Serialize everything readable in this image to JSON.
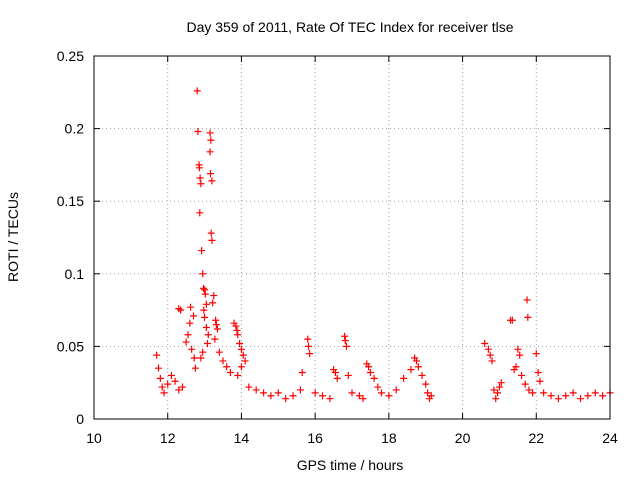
{
  "chart_data": {
    "type": "scatter",
    "title": "Day 359 of 2011, Rate Of TEC Index for receiver tlse",
    "xlabel": "GPS time / hours",
    "ylabel": "ROTI / TECUs",
    "xlim": [
      10,
      24
    ],
    "ylim": [
      0,
      0.25
    ],
    "xticks": [
      "10",
      "12",
      "14",
      "16",
      "18",
      "20",
      "22",
      "24"
    ],
    "yticks": [
      "0",
      "0.05",
      "0.1",
      "0.15",
      "0.2",
      "0.25"
    ],
    "grid": true,
    "marker": "+",
    "series": [
      {
        "name": "ROTI",
        "color": "#ff0000",
        "points": [
          [
            11.7,
            0.044
          ],
          [
            11.75,
            0.035
          ],
          [
            11.8,
            0.028
          ],
          [
            11.85,
            0.022
          ],
          [
            11.9,
            0.018
          ],
          [
            12.0,
            0.024
          ],
          [
            12.1,
            0.03
          ],
          [
            12.2,
            0.026
          ],
          [
            12.3,
            0.02
          ],
          [
            12.4,
            0.022
          ],
          [
            12.3,
            0.076
          ],
          [
            12.35,
            0.075
          ],
          [
            12.5,
            0.053
          ],
          [
            12.55,
            0.058
          ],
          [
            12.6,
            0.066
          ],
          [
            12.62,
            0.077
          ],
          [
            12.65,
            0.048
          ],
          [
            12.7,
            0.071
          ],
          [
            12.72,
            0.042
          ],
          [
            12.75,
            0.035
          ],
          [
            12.8,
            0.226
          ],
          [
            12.82,
            0.198
          ],
          [
            12.85,
            0.175
          ],
          [
            12.86,
            0.173
          ],
          [
            12.88,
            0.166
          ],
          [
            12.9,
            0.162
          ],
          [
            12.87,
            0.142
          ],
          [
            12.92,
            0.116
          ],
          [
            12.95,
            0.1
          ],
          [
            12.97,
            0.09
          ],
          [
            13.0,
            0.089
          ],
          [
            13.02,
            0.086
          ],
          [
            13.05,
            0.079
          ],
          [
            12.98,
            0.075
          ],
          [
            13.0,
            0.07
          ],
          [
            13.05,
            0.063
          ],
          [
            13.1,
            0.058
          ],
          [
            13.08,
            0.052
          ],
          [
            12.95,
            0.046
          ],
          [
            12.9,
            0.042
          ],
          [
            13.15,
            0.197
          ],
          [
            13.17,
            0.192
          ],
          [
            13.15,
            0.184
          ],
          [
            13.16,
            0.169
          ],
          [
            13.2,
            0.164
          ],
          [
            13.18,
            0.128
          ],
          [
            13.2,
            0.123
          ],
          [
            13.25,
            0.085
          ],
          [
            13.22,
            0.08
          ],
          [
            13.3,
            0.068
          ],
          [
            13.32,
            0.065
          ],
          [
            13.35,
            0.062
          ],
          [
            13.28,
            0.055
          ],
          [
            13.4,
            0.046
          ],
          [
            13.5,
            0.04
          ],
          [
            13.6,
            0.036
          ],
          [
            13.7,
            0.032
          ],
          [
            13.8,
            0.066
          ],
          [
            13.85,
            0.064
          ],
          [
            13.88,
            0.061
          ],
          [
            13.9,
            0.058
          ],
          [
            13.95,
            0.052
          ],
          [
            14.0,
            0.048
          ],
          [
            14.05,
            0.044
          ],
          [
            14.1,
            0.04
          ],
          [
            14.0,
            0.036
          ],
          [
            13.9,
            0.03
          ],
          [
            14.2,
            0.022
          ],
          [
            14.4,
            0.02
          ],
          [
            14.6,
            0.018
          ],
          [
            14.8,
            0.016
          ],
          [
            15.0,
            0.018
          ],
          [
            15.2,
            0.014
          ],
          [
            15.4,
            0.016
          ],
          [
            15.6,
            0.02
          ],
          [
            15.65,
            0.032
          ],
          [
            15.8,
            0.055
          ],
          [
            15.82,
            0.05
          ],
          [
            15.85,
            0.045
          ],
          [
            16.0,
            0.018
          ],
          [
            16.2,
            0.016
          ],
          [
            16.4,
            0.014
          ],
          [
            16.5,
            0.034
          ],
          [
            16.55,
            0.032
          ],
          [
            16.6,
            0.028
          ],
          [
            16.8,
            0.057
          ],
          [
            16.82,
            0.054
          ],
          [
            16.85,
            0.05
          ],
          [
            16.9,
            0.03
          ],
          [
            17.0,
            0.018
          ],
          [
            17.2,
            0.016
          ],
          [
            17.3,
            0.014
          ],
          [
            17.4,
            0.038
          ],
          [
            17.45,
            0.036
          ],
          [
            17.5,
            0.032
          ],
          [
            17.6,
            0.028
          ],
          [
            17.7,
            0.022
          ],
          [
            17.8,
            0.018
          ],
          [
            18.0,
            0.016
          ],
          [
            18.2,
            0.02
          ],
          [
            18.4,
            0.028
          ],
          [
            18.6,
            0.034
          ],
          [
            18.7,
            0.042
          ],
          [
            18.75,
            0.04
          ],
          [
            18.8,
            0.036
          ],
          [
            18.9,
            0.03
          ],
          [
            19.0,
            0.024
          ],
          [
            19.05,
            0.018
          ],
          [
            19.1,
            0.014
          ],
          [
            19.15,
            0.016
          ],
          [
            20.6,
            0.052
          ],
          [
            20.7,
            0.048
          ],
          [
            20.75,
            0.044
          ],
          [
            20.8,
            0.04
          ],
          [
            20.85,
            0.02
          ],
          [
            20.9,
            0.014
          ],
          [
            20.95,
            0.018
          ],
          [
            21.0,
            0.022
          ],
          [
            21.05,
            0.025
          ],
          [
            21.3,
            0.068
          ],
          [
            21.35,
            0.068
          ],
          [
            21.4,
            0.034
          ],
          [
            21.45,
            0.036
          ],
          [
            21.5,
            0.048
          ],
          [
            21.55,
            0.044
          ],
          [
            21.6,
            0.03
          ],
          [
            21.7,
            0.024
          ],
          [
            21.75,
            0.082
          ],
          [
            21.77,
            0.07
          ],
          [
            21.8,
            0.02
          ],
          [
            21.9,
            0.018
          ],
          [
            22.0,
            0.045
          ],
          [
            22.05,
            0.032
          ],
          [
            22.1,
            0.026
          ],
          [
            22.2,
            0.018
          ],
          [
            22.4,
            0.016
          ],
          [
            22.6,
            0.014
          ],
          [
            22.8,
            0.016
          ],
          [
            23.0,
            0.018
          ],
          [
            23.2,
            0.014
          ],
          [
            23.4,
            0.016
          ],
          [
            23.6,
            0.018
          ],
          [
            23.8,
            0.016
          ],
          [
            24.0,
            0.018
          ]
        ]
      }
    ]
  }
}
